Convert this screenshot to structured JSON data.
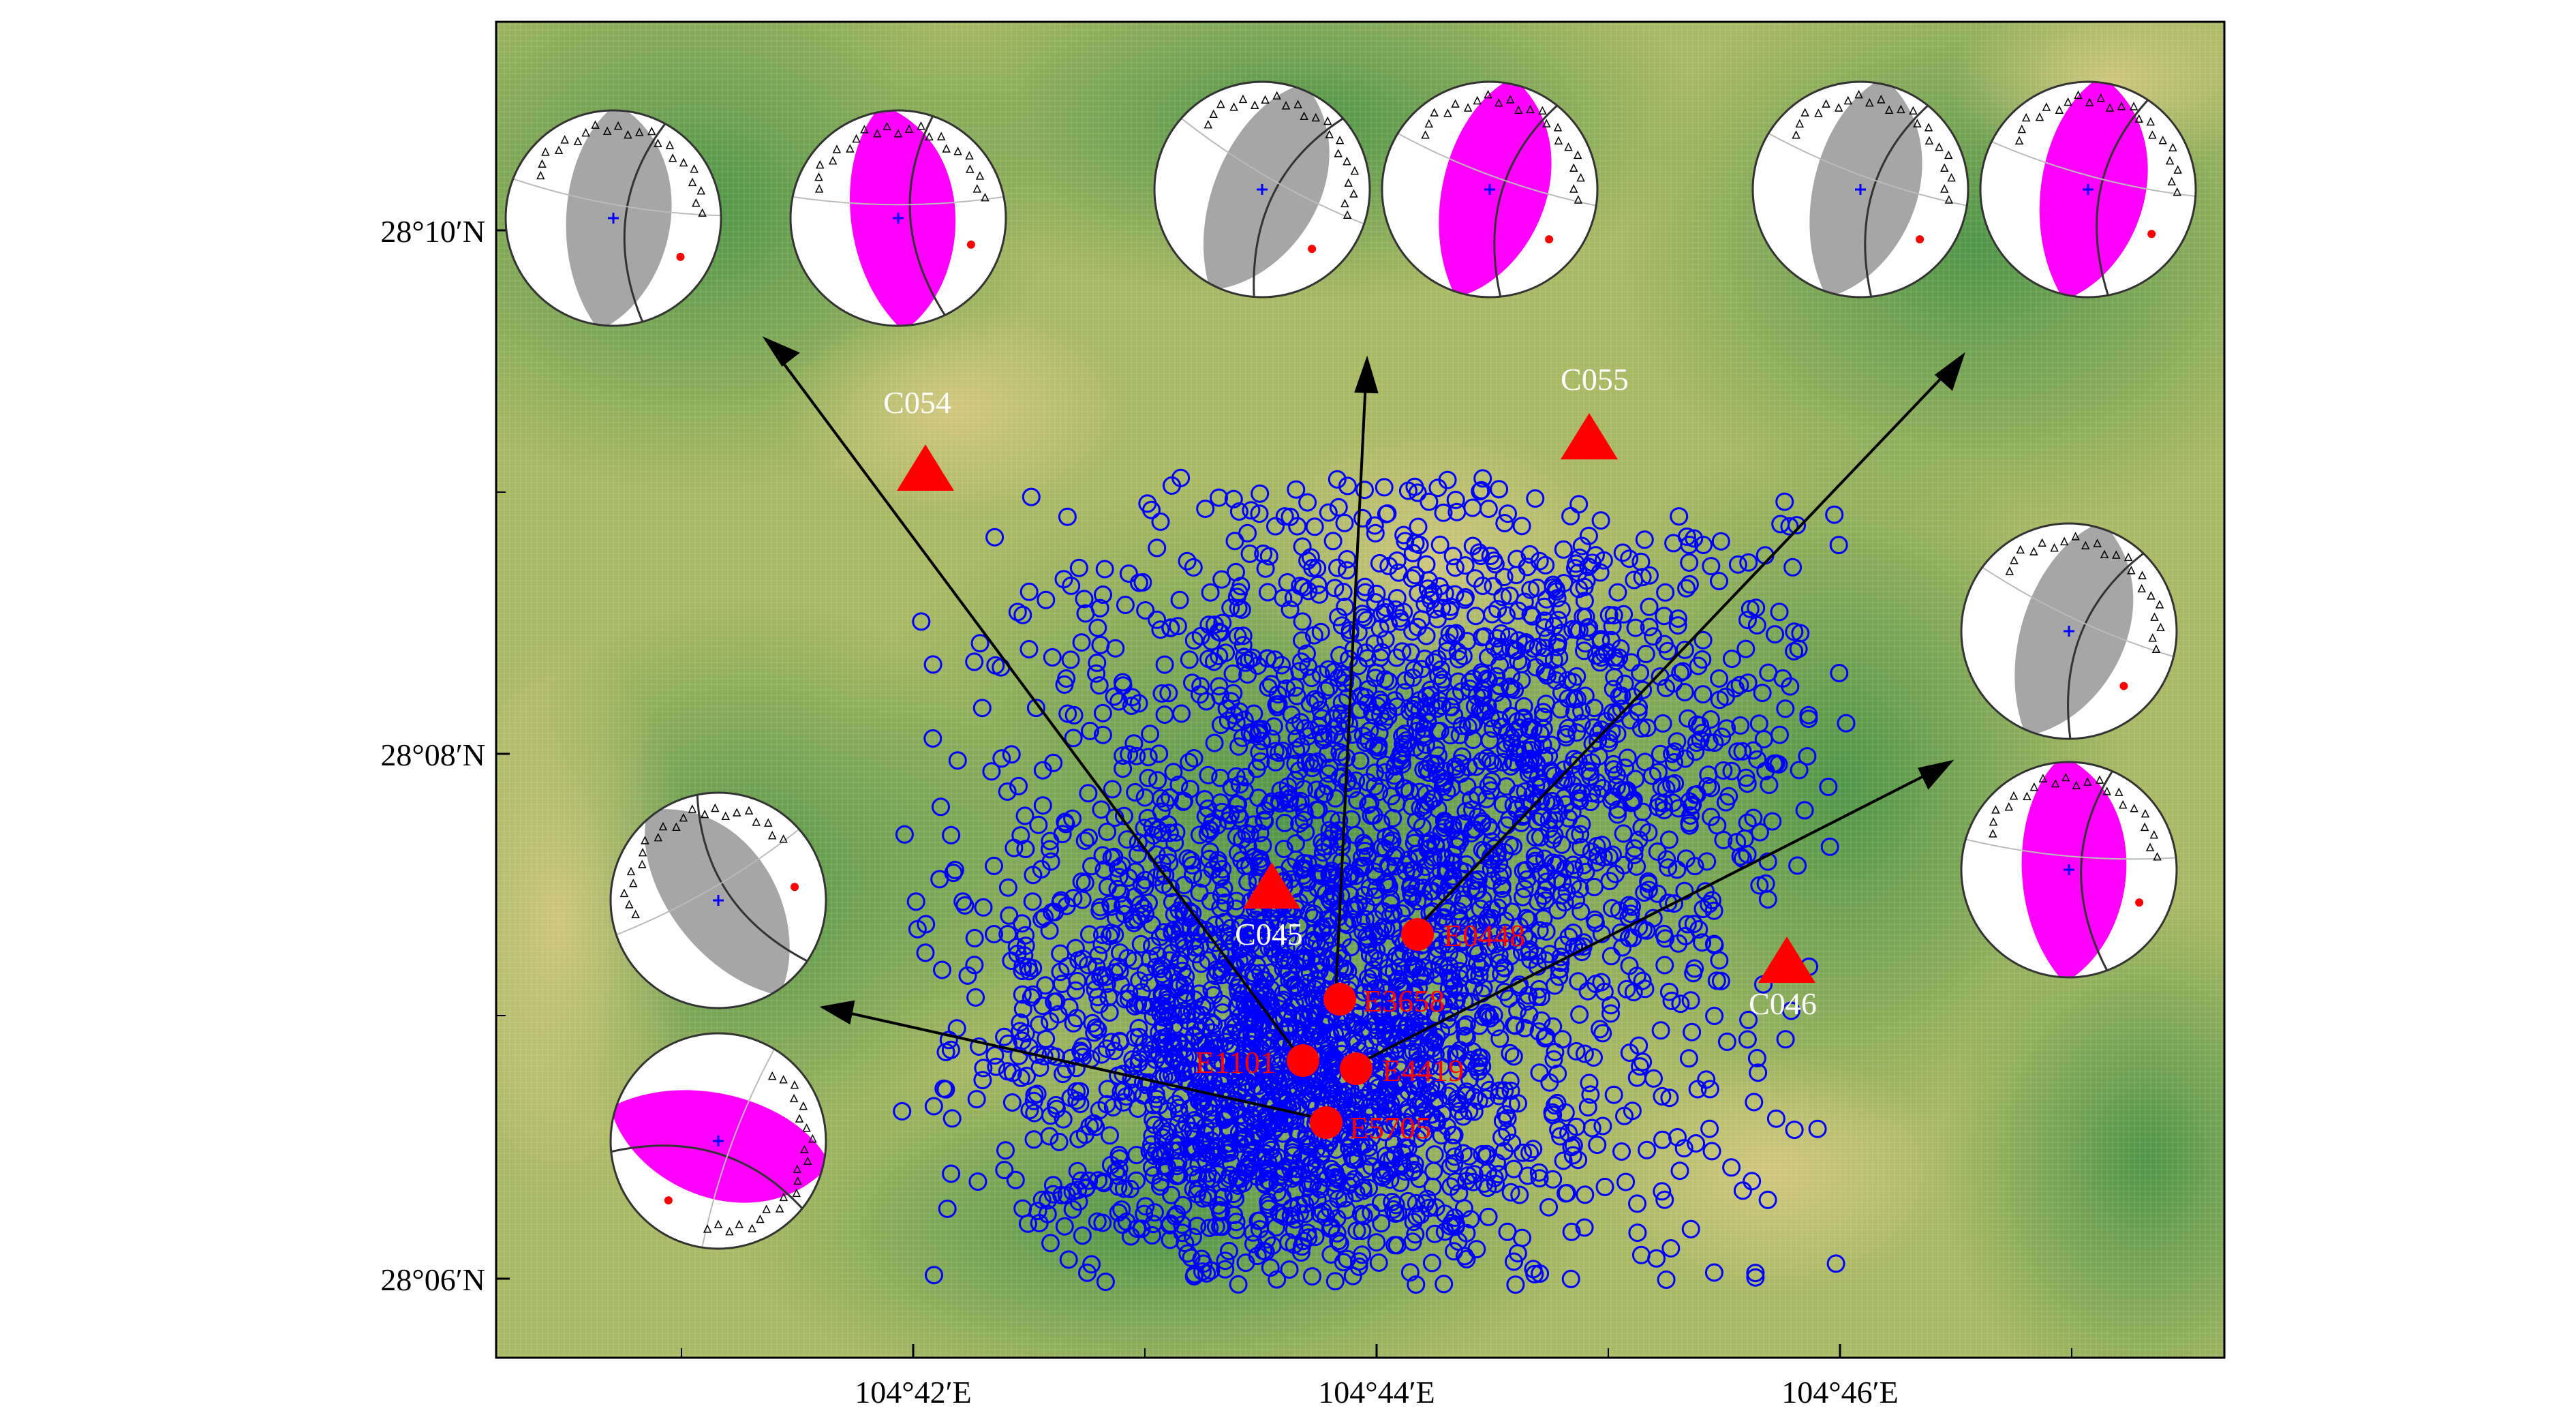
{
  "map": {
    "lat_ticks": [
      "28°10′N",
      "28°08′N",
      "28°06′N"
    ],
    "lon_ticks": [
      "104°42′E",
      "104°44′E",
      "104°46′E"
    ],
    "colors": {
      "terrain_green": "#4f9a4a",
      "terrain_yellow": "#cfc27a",
      "event_circle": "#0000ff",
      "station": "#ff0000",
      "event_marker": "#ff0000",
      "arrow": "#000000",
      "p_wave_fill": "#ff00ff",
      "s_wave_fill": "#a6a6a6"
    }
  },
  "stations": [
    {
      "name": "C054"
    },
    {
      "name": "C055"
    },
    {
      "name": "C045"
    },
    {
      "name": "C046"
    }
  ],
  "events": [
    {
      "id": "E0448"
    },
    {
      "id": "E3658"
    },
    {
      "id": "E1101"
    },
    {
      "id": "E4419"
    },
    {
      "id": "E5705"
    }
  ],
  "focal_mechanisms": [
    {
      "event": "E1101",
      "group": "top-left"
    },
    {
      "event": "E3658",
      "group": "top-center"
    },
    {
      "event": "E0448",
      "group": "top-right"
    },
    {
      "event": "E4419",
      "group": "right"
    },
    {
      "event": "E5705",
      "group": "left"
    }
  ]
}
